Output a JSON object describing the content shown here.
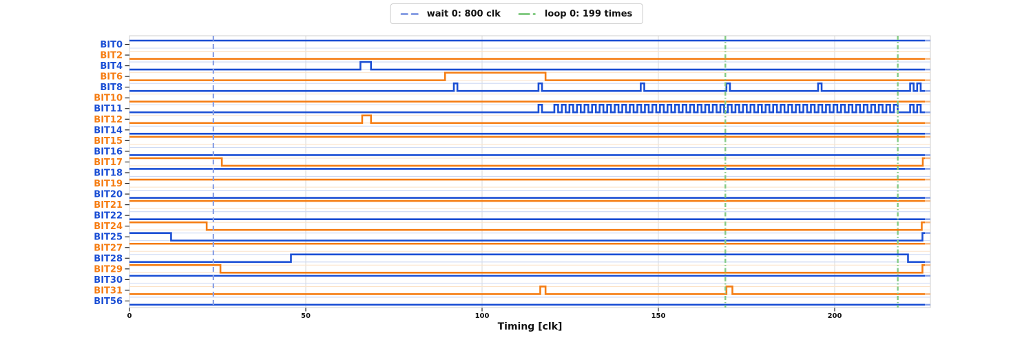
{
  "legend": {
    "wait_label": "wait 0: 800 clk",
    "loop_label": "loop 0: 199 times",
    "wait_color": "#8aa0e4",
    "loop_color": "#85cb85"
  },
  "chart_data": {
    "type": "line",
    "subtype": "digital-timing-waveform",
    "title": "",
    "xlabel": "Timing [clk]",
    "ylabel": "",
    "x_ticks": [
      0,
      50,
      100,
      150,
      200
    ],
    "xlim": [
      0,
      227
    ],
    "end_time": 225.6,
    "grid": "vertical-only",
    "legend_position": "top-center",
    "colors": {
      "blue": "#1a4ed4",
      "orange": "#f57d13",
      "faint_blue": "#cdd9f4",
      "faint_orange": "#fbe3c9",
      "grid": "#d9d9d9",
      "spine": "#cfcfcf",
      "tick": "#262626",
      "wait_line": "#8aa0e4",
      "loop_line": "#85cb85"
    },
    "markers": {
      "wait_lines": [
        23.8
      ],
      "loop_lines": [
        169.0,
        217.9
      ]
    },
    "signals": [
      {
        "name": "BIT0",
        "color": "blue",
        "high_intervals": [
          [
            0,
            225.6
          ]
        ]
      },
      {
        "name": "BIT2",
        "color": "orange",
        "high_intervals": []
      },
      {
        "name": "BIT4",
        "color": "blue",
        "high_intervals": [
          [
            65.5,
            68.5
          ]
        ]
      },
      {
        "name": "BIT6",
        "color": "orange",
        "high_intervals": [
          [
            89.5,
            118
          ]
        ]
      },
      {
        "name": "BIT8",
        "color": "blue",
        "high_intervals": [
          [
            92,
            93
          ],
          [
            116,
            117
          ],
          [
            145,
            146
          ],
          [
            169.3,
            170.3
          ],
          [
            195.3,
            196.3
          ],
          [
            221.4,
            222.4
          ],
          [
            223.4,
            224.4
          ]
        ]
      },
      {
        "name": "BIT10",
        "color": "orange",
        "high_intervals": []
      },
      {
        "name": "BIT11",
        "color": "blue",
        "high_intervals": [
          [
            116,
            117
          ],
          [
            221.4,
            222.4
          ],
          [
            223.4,
            224.4
          ]
        ],
        "square_wave": {
          "start": 120.5,
          "end": 217.9,
          "half_period": 1.07
        }
      },
      {
        "name": "BIT12",
        "color": "orange",
        "high_intervals": [
          [
            66,
            68.5
          ]
        ]
      },
      {
        "name": "BIT14",
        "color": "blue",
        "high_intervals": []
      },
      {
        "name": "BIT15",
        "color": "orange",
        "high_intervals": [
          [
            0,
            225.6
          ]
        ]
      },
      {
        "name": "BIT16",
        "color": "blue",
        "high_intervals": []
      },
      {
        "name": "BIT17",
        "color": "orange",
        "high_intervals": [
          [
            0,
            26.2
          ],
          [
            225.0,
            225.6
          ]
        ]
      },
      {
        "name": "BIT18",
        "color": "blue",
        "high_intervals": [
          [
            0,
            225.6
          ]
        ]
      },
      {
        "name": "BIT19",
        "color": "orange",
        "high_intervals": [
          [
            0,
            225.6
          ]
        ]
      },
      {
        "name": "BIT20",
        "color": "blue",
        "high_intervals": []
      },
      {
        "name": "BIT21",
        "color": "orange",
        "high_intervals": [
          [
            0,
            225.6
          ]
        ]
      },
      {
        "name": "BIT22",
        "color": "blue",
        "high_intervals": []
      },
      {
        "name": "BIT24",
        "color": "orange",
        "high_intervals": [
          [
            0,
            21.9
          ],
          [
            224.7,
            225.6
          ]
        ]
      },
      {
        "name": "BIT25",
        "color": "blue",
        "high_intervals": [
          [
            0,
            11.8
          ],
          [
            224.9,
            225.6
          ]
        ]
      },
      {
        "name": "BIT27",
        "color": "orange",
        "high_intervals": [
          [
            0,
            225.6
          ]
        ]
      },
      {
        "name": "BIT28",
        "color": "blue",
        "high_intervals": [
          [
            45.8,
            220.8
          ]
        ]
      },
      {
        "name": "BIT29",
        "color": "orange",
        "high_intervals": [
          [
            0,
            25.8
          ],
          [
            224.9,
            225.6
          ]
        ]
      },
      {
        "name": "BIT30",
        "color": "blue",
        "high_intervals": [
          [
            0,
            225.6
          ]
        ]
      },
      {
        "name": "BIT31",
        "color": "orange",
        "high_intervals": [
          [
            116.5,
            118
          ],
          [
            169.3,
            171
          ]
        ]
      },
      {
        "name": "BIT56",
        "color": "blue",
        "high_intervals": []
      }
    ]
  }
}
